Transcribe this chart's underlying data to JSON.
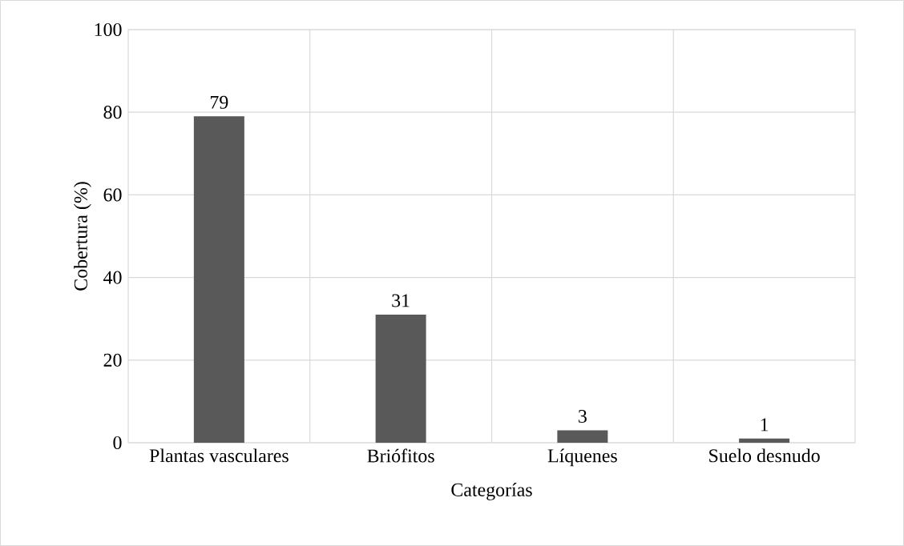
{
  "chart_data": {
    "type": "bar",
    "xlabel": "Categorías",
    "ylabel": "Cobertura  (%)",
    "categories": [
      "Plantas vasculares",
      "Briófitos",
      "Líquenes",
      "Suelo desnudo"
    ],
    "values": [
      79,
      31,
      3,
      1
    ],
    "color": "#595959",
    "ylim": [
      0,
      100
    ],
    "yticks": [
      0,
      20,
      40,
      60,
      80,
      100
    ],
    "grid": true,
    "data_labels": true
  }
}
